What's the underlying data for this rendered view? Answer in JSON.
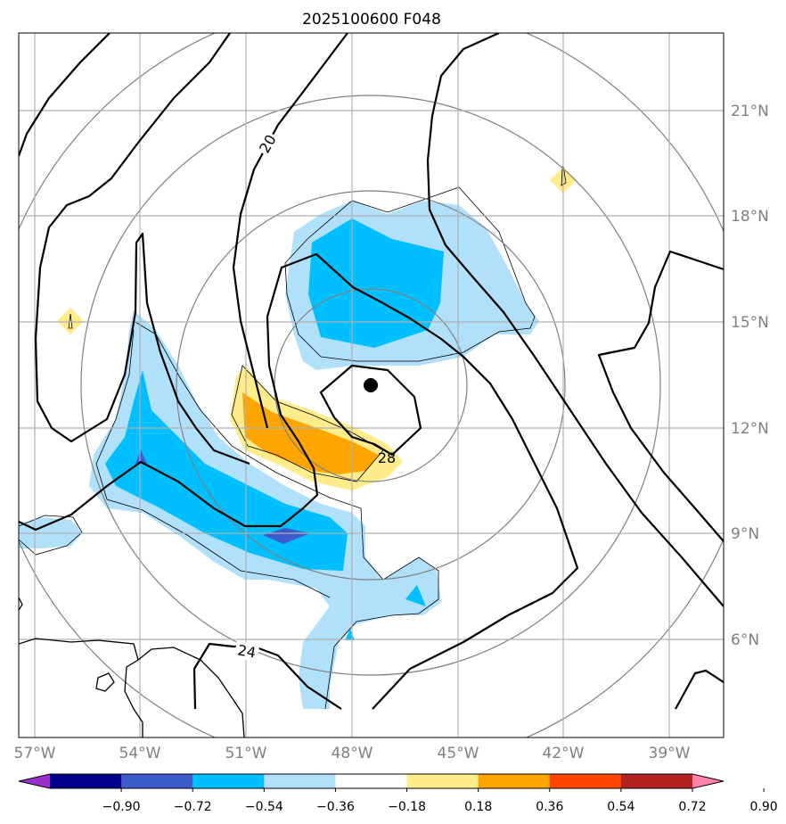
{
  "title": "2025100600 F048",
  "longitude_labels": [
    "57°W",
    "54°W",
    "51°W",
    "48°W",
    "45°W",
    "42°W",
    "39°W"
  ],
  "latitude_labels": [
    "21°N",
    "18°N",
    "15°N",
    "12°N",
    "9°N",
    "6°N"
  ],
  "contour_labels": {
    "c20": "20",
    "c24": "24",
    "c28": "28"
  },
  "colorbar": {
    "colors": [
      "#9932cc",
      "#00008b",
      "#3d5ccc",
      "#00bfff",
      "#b0e0fa",
      "#ffffff",
      "#ffec8b",
      "#ffa500",
      "#ff4500",
      "#b22222",
      "#ff82ab"
    ],
    "tick_labels": [
      "−0.90",
      "−0.72",
      "−0.54",
      "−0.36",
      "−0.18",
      "0.18",
      "0.36",
      "0.54",
      "0.72",
      "0.90"
    ]
  },
  "storm_center_marker": "filled-circle"
}
